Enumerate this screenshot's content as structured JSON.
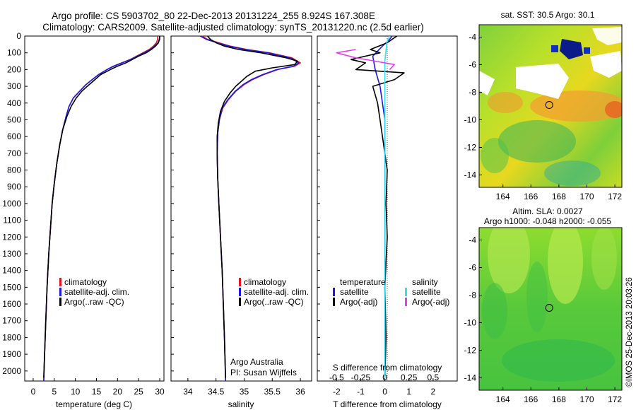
{
  "header": {
    "line1": "Argo profile: CS 5903702_80 22-Dec-2013 20131224_255 8.924S 167.308E",
    "line2": "Climatology: CARS2009. Satellite-adjusted climatology: synTS_20131220.nc (2.5d earlier)"
  },
  "credits": {
    "line1": "Argo Australia",
    "line2": "PI: Susan Wijffels"
  },
  "colors": {
    "climatology": "#e8141c",
    "satellite": "#1a1ae6",
    "argo": "#000000",
    "salinity_satellite": "#33e0f0",
    "salinity_argo": "#e040e8"
  },
  "chart_data": [
    {
      "type": "line",
      "xlabel": "temperature (deg C)",
      "ylabel": "",
      "xlim": [
        -2,
        31
      ],
      "ylim": [
        2060,
        0
      ],
      "xticks": [
        "0",
        "5",
        "10",
        "15",
        "20",
        "25",
        "30"
      ],
      "yticks": [
        "0",
        "100",
        "200",
        "300",
        "400",
        "500",
        "600",
        "700",
        "800",
        "900",
        "1000",
        "1100",
        "1200",
        "1300",
        "1400",
        "1500",
        "1600",
        "1700",
        "1800",
        "1900",
        "2000"
      ],
      "legend": [
        "climatology",
        "satellite-adj. clim.",
        "Argo(..raw -QC)"
      ],
      "series": [
        {
          "name": "climatology",
          "color": "#e8141c",
          "points": [
            [
              29.5,
              0
            ],
            [
              29.5,
              20
            ],
            [
              29.2,
              40
            ],
            [
              28.5,
              60
            ],
            [
              27.5,
              80
            ],
            [
              26.0,
              100
            ],
            [
              24.5,
              120
            ],
            [
              23.0,
              140
            ],
            [
              21.0,
              160
            ],
            [
              19.0,
              180
            ],
            [
              17.5,
              200
            ],
            [
              15.5,
              230
            ],
            [
              14.0,
              260
            ],
            [
              12.5,
              290
            ],
            [
              11.0,
              330
            ],
            [
              9.5,
              370
            ],
            [
              8.5,
              420
            ],
            [
              7.8,
              480
            ],
            [
              7.0,
              560
            ],
            [
              6.3,
              650
            ],
            [
              5.6,
              760
            ],
            [
              5.0,
              880
            ],
            [
              4.5,
              1000
            ],
            [
              4.1,
              1150
            ],
            [
              3.7,
              1300
            ],
            [
              3.3,
              1500
            ],
            [
              3.0,
              1700
            ],
            [
              2.7,
              1900
            ],
            [
              2.5,
              2060
            ]
          ]
        },
        {
          "name": "satellite-adj. clim.",
          "color": "#1a1ae6",
          "points": [
            [
              30.0,
              0
            ],
            [
              30.0,
              20
            ],
            [
              29.6,
              40
            ],
            [
              28.8,
              60
            ],
            [
              27.8,
              80
            ],
            [
              26.3,
              100
            ],
            [
              24.7,
              120
            ],
            [
              23.1,
              140
            ],
            [
              21.1,
              160
            ],
            [
              19.1,
              180
            ],
            [
              17.5,
              200
            ],
            [
              15.5,
              230
            ],
            [
              14.0,
              260
            ],
            [
              12.5,
              290
            ],
            [
              11.0,
              330
            ],
            [
              9.5,
              370
            ],
            [
              8.5,
              420
            ],
            [
              7.8,
              480
            ],
            [
              7.0,
              560
            ],
            [
              6.3,
              650
            ],
            [
              5.6,
              760
            ],
            [
              5.0,
              880
            ],
            [
              4.5,
              1000
            ],
            [
              4.1,
              1150
            ],
            [
              3.7,
              1300
            ],
            [
              3.3,
              1500
            ],
            [
              3.0,
              1700
            ],
            [
              2.7,
              1900
            ],
            [
              2.5,
              2060
            ]
          ]
        },
        {
          "name": "Argo(..raw -QC)",
          "color": "#000000",
          "points": [
            [
              30.0,
              0
            ],
            [
              29.9,
              20
            ],
            [
              29.7,
              40
            ],
            [
              29.0,
              60
            ],
            [
              28.0,
              80
            ],
            [
              26.8,
              100
            ],
            [
              25.0,
              120
            ],
            [
              23.5,
              140
            ],
            [
              22.0,
              160
            ],
            [
              20.0,
              180
            ],
            [
              18.3,
              200
            ],
            [
              16.0,
              230
            ],
            [
              14.2,
              270
            ],
            [
              12.8,
              300
            ],
            [
              11.5,
              330
            ],
            [
              10.2,
              370
            ],
            [
              9.0,
              420
            ],
            [
              8.0,
              480
            ],
            [
              7.0,
              560
            ],
            [
              6.3,
              650
            ],
            [
              5.6,
              760
            ],
            [
              5.0,
              880
            ],
            [
              4.5,
              1000
            ],
            [
              4.1,
              1150
            ],
            [
              3.7,
              1300
            ],
            [
              3.3,
              1500
            ],
            [
              3.0,
              1700
            ],
            [
              2.7,
              1900
            ],
            [
              2.5,
              2040
            ]
          ]
        }
      ]
    },
    {
      "type": "line",
      "xlabel": "salinity",
      "ylabel": "",
      "xlim": [
        33.7,
        36.2
      ],
      "ylim": [
        2060,
        0
      ],
      "xticks": [
        "34",
        "34.5",
        "35",
        "35.5",
        "36"
      ],
      "legend": [
        "climatology",
        "satellite-adj. clim.",
        "Argo(..raw -QC)"
      ],
      "series": [
        {
          "name": "climatology",
          "color": "#e8141c",
          "points": [
            [
              34.25,
              0
            ],
            [
              34.35,
              20
            ],
            [
              34.55,
              40
            ],
            [
              34.75,
              60
            ],
            [
              35.05,
              80
            ],
            [
              35.45,
              100
            ],
            [
              35.85,
              130
            ],
            [
              36.0,
              160
            ],
            [
              35.9,
              180
            ],
            [
              35.6,
              200
            ],
            [
              35.35,
              230
            ],
            [
              35.15,
              260
            ],
            [
              35.0,
              290
            ],
            [
              34.85,
              330
            ],
            [
              34.72,
              380
            ],
            [
              34.62,
              430
            ],
            [
              34.56,
              500
            ],
            [
              34.53,
              580
            ],
            [
              34.52,
              700
            ],
            [
              34.53,
              850
            ],
            [
              34.55,
              1000
            ],
            [
              34.58,
              1200
            ],
            [
              34.61,
              1400
            ],
            [
              34.63,
              1600
            ],
            [
              34.65,
              1800
            ],
            [
              34.67,
              2060
            ]
          ]
        },
        {
          "name": "satellite-adj. clim.",
          "color": "#1a1ae6",
          "points": [
            [
              34.22,
              0
            ],
            [
              34.33,
              20
            ],
            [
              34.52,
              40
            ],
            [
              34.72,
              60
            ],
            [
              35.02,
              80
            ],
            [
              35.42,
              100
            ],
            [
              35.82,
              130
            ],
            [
              35.97,
              160
            ],
            [
              35.88,
              180
            ],
            [
              35.58,
              200
            ],
            [
              35.33,
              230
            ],
            [
              35.13,
              260
            ],
            [
              34.98,
              290
            ],
            [
              34.84,
              330
            ],
            [
              34.71,
              380
            ],
            [
              34.61,
              430
            ],
            [
              34.56,
              500
            ],
            [
              34.53,
              580
            ],
            [
              34.52,
              700
            ],
            [
              34.53,
              850
            ],
            [
              34.55,
              1000
            ],
            [
              34.58,
              1200
            ],
            [
              34.61,
              1400
            ],
            [
              34.63,
              1600
            ],
            [
              34.65,
              1800
            ],
            [
              34.67,
              2060
            ]
          ]
        },
        {
          "name": "Argo(..raw -QC)",
          "color": "#000000",
          "points": [
            [
              34.35,
              0
            ],
            [
              34.4,
              20
            ],
            [
              34.5,
              40
            ],
            [
              34.65,
              60
            ],
            [
              34.9,
              80
            ],
            [
              35.3,
              100
            ],
            [
              35.75,
              130
            ],
            [
              35.95,
              150
            ],
            [
              35.9,
              170
            ],
            [
              35.5,
              190
            ],
            [
              35.2,
              210
            ],
            [
              35.05,
              240
            ],
            [
              34.95,
              270
            ],
            [
              34.85,
              300
            ],
            [
              34.75,
              340
            ],
            [
              34.65,
              390
            ],
            [
              34.58,
              450
            ],
            [
              34.54,
              520
            ],
            [
              34.52,
              600
            ],
            [
              34.52,
              700
            ],
            [
              34.53,
              850
            ],
            [
              34.55,
              1000
            ],
            [
              34.58,
              1200
            ],
            [
              34.61,
              1400
            ],
            [
              34.63,
              1600
            ],
            [
              34.65,
              1800
            ],
            [
              34.67,
              2040
            ]
          ]
        }
      ]
    },
    {
      "type": "line",
      "xlabel": "T difference from climatology",
      "xlabel2": "S difference from climatology",
      "xlim": [
        -2.8,
        3.0
      ],
      "ylim": [
        2060,
        0
      ],
      "xticks": [
        "-2",
        "-1",
        "0",
        "1",
        "2"
      ],
      "xticks2": [
        "-0.5",
        "-0.25",
        "0",
        "0.25",
        "0.5"
      ],
      "legend": {
        "temperature": "temperature",
        "salinity": "salinity",
        "t_sat": "satellite",
        "t_argo": "Argo(-adj)",
        "s_sat": "satellite",
        "s_argo": "Argo(-adj)"
      },
      "series": [
        {
          "name": "temperature satellite",
          "color": "#1a1ae6",
          "points": [
            [
              0.3,
              0
            ],
            [
              0.2,
              20
            ],
            [
              -0.1,
              60
            ],
            [
              -0.5,
              120
            ],
            [
              -0.4,
              200
            ],
            [
              -0.2,
              300
            ],
            [
              -0.1,
              400
            ],
            [
              0,
              500
            ],
            [
              0,
              700
            ],
            [
              0,
              1000
            ],
            [
              0,
              1500
            ],
            [
              0,
              2040
            ]
          ]
        },
        {
          "name": "temperature Argo(-adj)",
          "color": "#000000",
          "points": [
            [
              0.5,
              0
            ],
            [
              0.3,
              20
            ],
            [
              0.1,
              40
            ],
            [
              -0.6,
              80
            ],
            [
              -0.2,
              100
            ],
            [
              -1.4,
              140
            ],
            [
              -0.8,
              160
            ],
            [
              -1.2,
              200
            ],
            [
              0.8,
              220
            ],
            [
              0.4,
              260
            ],
            [
              -0.5,
              300
            ],
            [
              -0.3,
              400
            ],
            [
              -0.2,
              500
            ],
            [
              -0.1,
              600
            ],
            [
              0.1,
              800
            ],
            [
              0.05,
              1000
            ],
            [
              0.1,
              1200
            ],
            [
              0,
              1500
            ],
            [
              0.05,
              1800
            ],
            [
              0,
              2040
            ]
          ]
        },
        {
          "name": "salinity satellite",
          "color": "#33e0f0",
          "points": [
            [
              0.05,
              0
            ],
            [
              0.02,
              40
            ],
            [
              0,
              150
            ],
            [
              0,
              400
            ],
            [
              0,
              800
            ],
            [
              0,
              1500
            ],
            [
              0,
              2040
            ]
          ]
        },
        {
          "name": "salinity Argo(-adj)",
          "color": "#e040e8",
          "points": [
            [
              -0.3,
              80
            ],
            [
              -0.5,
              100
            ],
            [
              -0.3,
              130
            ],
            [
              -0.1,
              150
            ],
            [
              0.1,
              170
            ],
            [
              0.05,
              200
            ]
          ]
        }
      ]
    }
  ],
  "map_top": {
    "title": "sat. SST: 30.5 Argo: 30.1",
    "yticks": [
      "-4",
      "-6",
      "-8",
      "-10",
      "-12",
      "-14"
    ],
    "xticks": [
      "164",
      "166",
      "168",
      "170",
      "172"
    ],
    "xlim": [
      162.3,
      172.5
    ],
    "ylim": [
      -14.9,
      -3.1
    ],
    "marker": {
      "lon": 167.308,
      "lat": -8.924
    }
  },
  "map_bottom": {
    "title1": "Altim. SLA: 0.0027",
    "title2": "Argo h1000: -0.048 h2000: -0.055",
    "yticks": [
      "-4",
      "-6",
      "-8",
      "-10",
      "-12",
      "-14"
    ],
    "xticks": [
      "164",
      "166",
      "168",
      "170",
      "172"
    ],
    "xlim": [
      162.3,
      172.5
    ],
    "ylim": [
      -14.9,
      -3.1
    ],
    "marker": {
      "lon": 167.308,
      "lat": -8.924
    }
  },
  "stamp": "©IMOS 25-Dec-2013 20:03:26"
}
